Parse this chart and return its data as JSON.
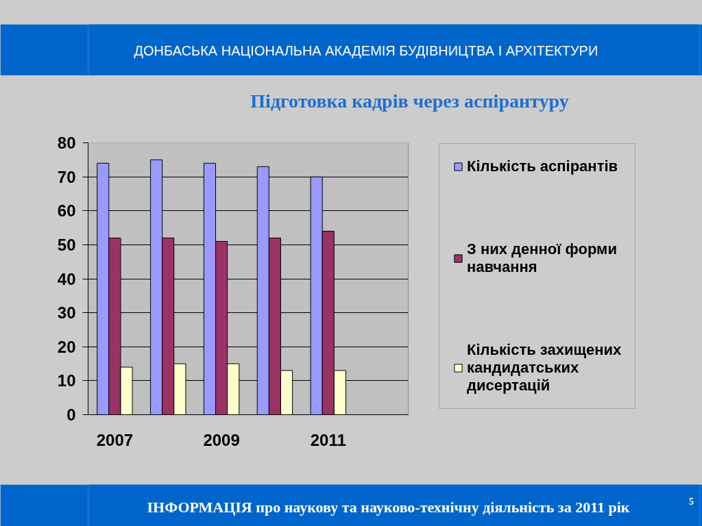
{
  "chart_data": {
    "type": "bar",
    "title": "Підготовка кадрів через аспірантуру",
    "categories": [
      "2007",
      null,
      "2009",
      null,
      "2011",
      null
    ],
    "series": [
      {
        "name": "Кількість аспірантів",
        "color": "#9999ff",
        "values": [
          74,
          75,
          74,
          73,
          70,
          null
        ]
      },
      {
        "name": "З них денної форми навчання",
        "color": "#993366",
        "values": [
          52,
          52,
          51,
          52,
          54,
          null
        ]
      },
      {
        "name": "Кількість захищених кандидатських дисертацій",
        "color": "#ffffcc",
        "values": [
          14,
          15,
          15,
          13,
          13,
          null
        ]
      }
    ],
    "ylim": [
      0,
      80
    ],
    "yticks": [
      0,
      10,
      20,
      30,
      40,
      50,
      60,
      70,
      80
    ],
    "grid": "y",
    "legend": "right",
    "annotations": [
      "ДОНБАСЬКА НАЦІОНАЛЬНА АКАДЕМІЯ БУДІВНИЦТВА І АРХІТЕКТУРИ",
      "ІНФОРМАЦІЯ про наукову та науково-технічну діяльність за 2011 рік",
      "5"
    ]
  }
}
